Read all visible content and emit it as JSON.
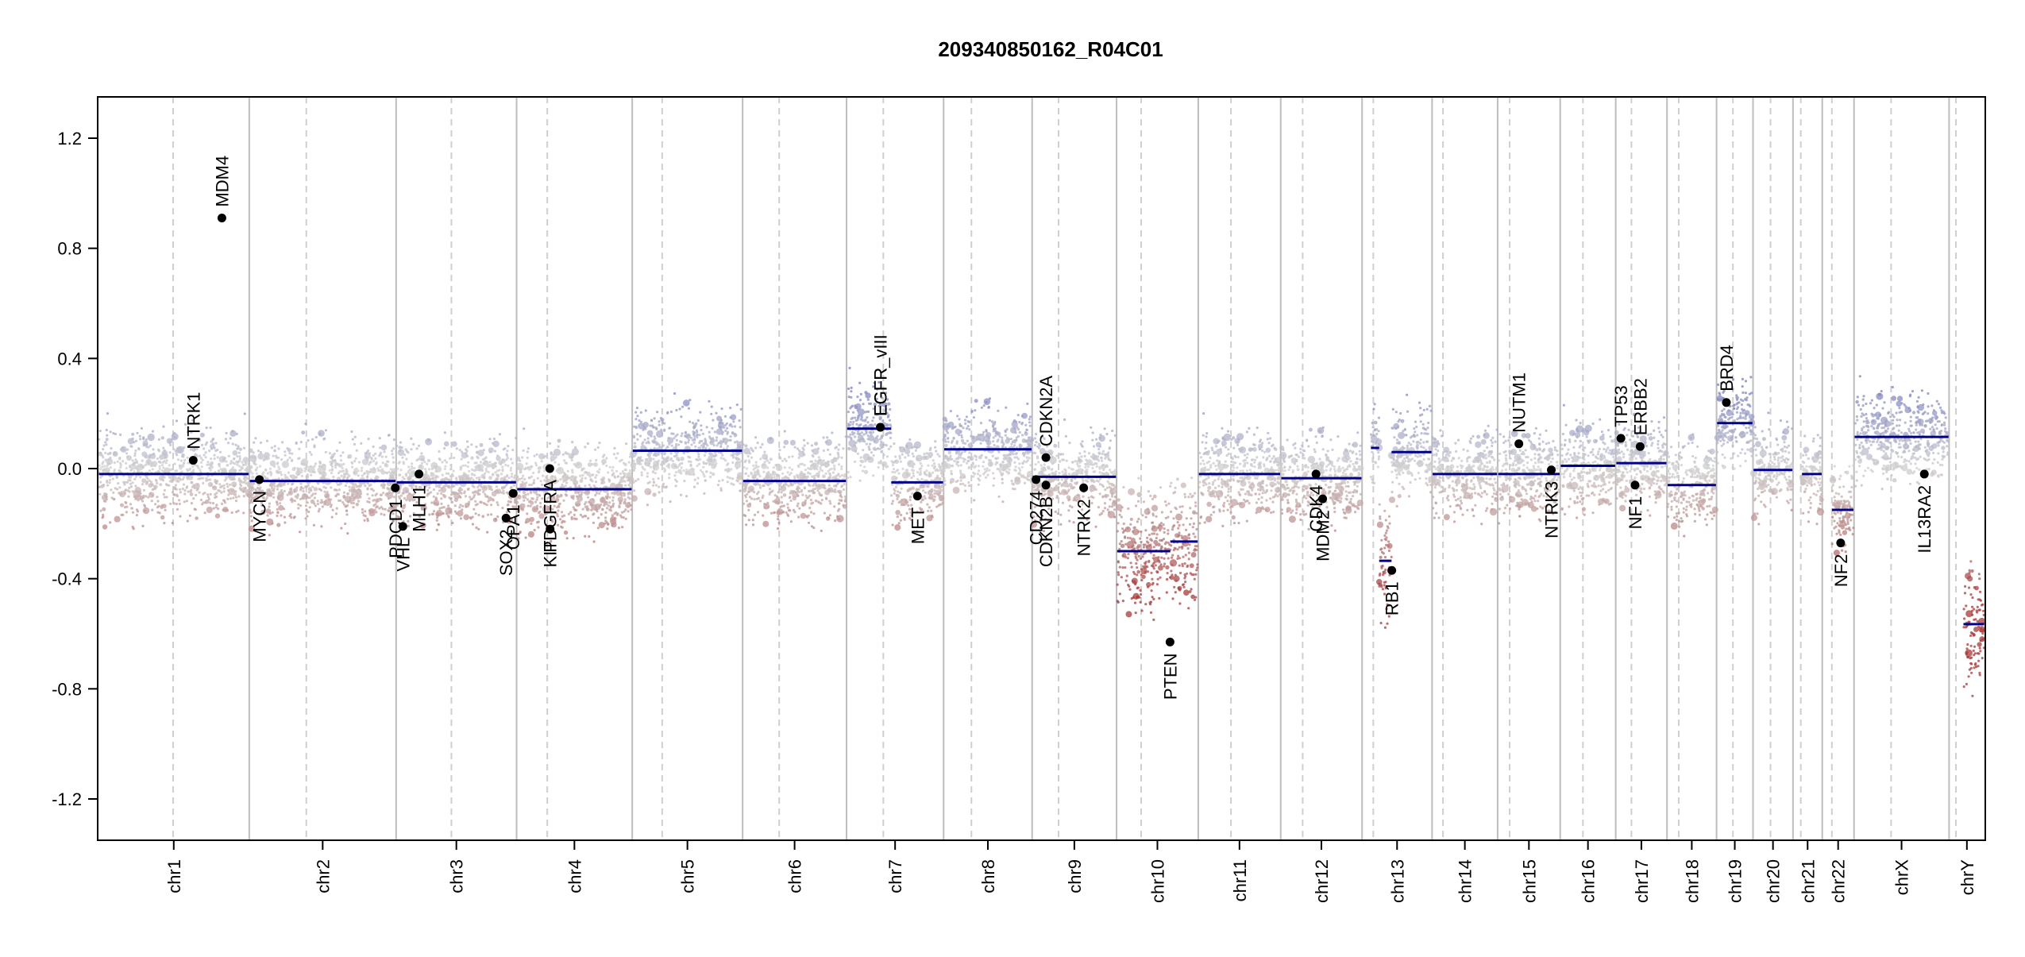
{
  "chart_data": {
    "type": "scatter",
    "title": "209340850162_R04C01",
    "xlabel": "",
    "ylabel": "",
    "ylim": [
      -1.35,
      1.35
    ],
    "y_ticks": [
      -1.2,
      -0.8,
      -0.4,
      0.0,
      0.4,
      0.8,
      1.2
    ],
    "y_tick_labels": [
      "-1.2",
      "-0.8",
      "-0.4",
      "0.0",
      "0.4",
      "0.8",
      "1.2"
    ],
    "grid": false,
    "colors": {
      "gain": "#7b7fc0",
      "neutral": "#cfcfcf",
      "loss": "#a73b3b",
      "segment": "#00008b",
      "gene_point": "#000000",
      "chrom_border": "#bdbdbd",
      "centromere": "#cfcfcf"
    },
    "chromosomes": [
      {
        "name": "chr1",
        "size": 248.956,
        "centro": 123.4,
        "segments": [
          {
            "s": 0,
            "e": 1,
            "v": -0.02
          }
        ]
      },
      {
        "name": "chr2",
        "size": 242.193,
        "centro": 93.9,
        "segments": [
          {
            "s": 0,
            "e": 1,
            "v": -0.045
          }
        ]
      },
      {
        "name": "chr3",
        "size": 198.295,
        "centro": 90.9,
        "segments": [
          {
            "s": 0,
            "e": 1,
            "v": -0.05
          }
        ]
      },
      {
        "name": "chr4",
        "size": 190.214,
        "centro": 50.0,
        "segments": [
          {
            "s": 0,
            "e": 1,
            "v": -0.075
          }
        ]
      },
      {
        "name": "chr5",
        "size": 181.538,
        "centro": 48.8,
        "segments": [
          {
            "s": 0,
            "e": 1,
            "v": 0.065
          }
        ]
      },
      {
        "name": "chr6",
        "size": 170.805,
        "centro": 59.8,
        "segments": [
          {
            "s": 0,
            "e": 1,
            "v": -0.045
          }
        ]
      },
      {
        "name": "chr7",
        "size": 159.345,
        "centro": 60.1,
        "segments": [
          {
            "s": 0,
            "e": 0.46,
            "v": 0.145
          },
          {
            "s": 0.46,
            "e": 1,
            "v": -0.05
          }
        ]
      },
      {
        "name": "chr8",
        "size": 145.138,
        "centro": 45.2,
        "segments": [
          {
            "s": 0,
            "e": 1,
            "v": 0.07
          }
        ]
      },
      {
        "name": "chr9",
        "size": 138.394,
        "centro": 43.0,
        "segments": [
          {
            "s": 0,
            "e": 1,
            "v": -0.03
          }
        ]
      },
      {
        "name": "chr10",
        "size": 133.797,
        "centro": 39.8,
        "segments": [
          {
            "s": 0,
            "e": 0.66,
            "v": -0.3
          },
          {
            "s": 0.66,
            "e": 1,
            "v": -0.265
          }
        ]
      },
      {
        "name": "chr11",
        "size": 135.086,
        "centro": 53.4,
        "segments": [
          {
            "s": 0,
            "e": 1,
            "v": -0.02
          }
        ]
      },
      {
        "name": "chr12",
        "size": 133.275,
        "centro": 35.5,
        "segments": [
          {
            "s": 0,
            "e": 1,
            "v": -0.035
          }
        ]
      },
      {
        "name": "chr13",
        "size": 114.364,
        "centro": 17.7,
        "segments": [
          {
            "s": 0.12,
            "e": 0.24,
            "v": 0.075
          },
          {
            "s": 0.24,
            "e": 0.42,
            "v": -0.335
          },
          {
            "s": 0.42,
            "e": 1,
            "v": 0.06
          }
        ]
      },
      {
        "name": "chr14",
        "size": 107.043,
        "centro": 17.2,
        "segments": [
          {
            "s": 0,
            "e": 1,
            "v": -0.02
          }
        ]
      },
      {
        "name": "chr15",
        "size": 101.991,
        "centro": 19.0,
        "segments": [
          {
            "s": 0,
            "e": 1,
            "v": -0.02
          }
        ]
      },
      {
        "name": "chr16",
        "size": 90.338,
        "centro": 36.8,
        "segments": [
          {
            "s": 0,
            "e": 1,
            "v": 0.01
          }
        ]
      },
      {
        "name": "chr17",
        "size": 83.257,
        "centro": 25.1,
        "segments": [
          {
            "s": 0,
            "e": 1,
            "v": 0.02
          }
        ]
      },
      {
        "name": "chr18",
        "size": 80.373,
        "centro": 18.5,
        "segments": [
          {
            "s": 0,
            "e": 1,
            "v": -0.06
          }
        ]
      },
      {
        "name": "chr19",
        "size": 58.617,
        "centro": 26.2,
        "segments": [
          {
            "s": 0,
            "e": 1,
            "v": 0.165
          }
        ]
      },
      {
        "name": "chr20",
        "size": 64.444,
        "centro": 28.1,
        "segments": [
          {
            "s": 0,
            "e": 1,
            "v": -0.005
          }
        ]
      },
      {
        "name": "chr21",
        "size": 46.71,
        "centro": 12.0,
        "segments": [
          {
            "s": 0.3,
            "e": 1,
            "v": -0.02
          }
        ]
      },
      {
        "name": "chr22",
        "size": 50.818,
        "centro": 15.0,
        "segments": [
          {
            "s": 0.3,
            "e": 1,
            "v": -0.15
          }
        ]
      },
      {
        "name": "chrX",
        "size": 156.041,
        "centro": 60.6,
        "segments": [
          {
            "s": 0,
            "e": 1,
            "v": 0.115
          }
        ]
      },
      {
        "name": "chrY",
        "size": 57.227,
        "centro": 10.4,
        "segments": [
          {
            "s": 0.4,
            "e": 1,
            "v": -0.565
          }
        ]
      }
    ],
    "genes": [
      {
        "name": "NTRK1",
        "chr": "chr1",
        "pos": 156.8,
        "value": 0.03
      },
      {
        "name": "MDM4",
        "chr": "chr1",
        "pos": 204.5,
        "value": 0.91
      },
      {
        "name": "MYCN",
        "chr": "chr2",
        "pos": 15.9,
        "value": -0.04
      },
      {
        "name": "PDCD1",
        "chr": "chr2",
        "pos": 241.8,
        "value": -0.07
      },
      {
        "name": "VHL",
        "chr": "chr3",
        "pos": 10.2,
        "value": -0.21
      },
      {
        "name": "MLH1",
        "chr": "chr3",
        "pos": 37.0,
        "value": -0.02
      },
      {
        "name": "SOX2",
        "chr": "chr3",
        "pos": 181.7,
        "value": -0.18
      },
      {
        "name": "OPA1",
        "chr": "chr3",
        "pos": 193.6,
        "value": -0.09
      },
      {
        "name": "PDGFRA",
        "chr": "chr4",
        "pos": 54.2,
        "value": 0.0
      },
      {
        "name": "KIT",
        "chr": "chr4",
        "pos": 54.7,
        "value": -0.22
      },
      {
        "name": "EGFR",
        "chr": "chr7",
        "pos": 55.1,
        "value": 0.15
      },
      {
        "name": "EGFR_vIII",
        "chr": "chr7",
        "pos": 55.2,
        "value": 0.15
      },
      {
        "name": "MET",
        "chr": "chr7",
        "pos": 116.8,
        "value": -0.1
      },
      {
        "name": "CD274",
        "chr": "chr9",
        "pos": 5.5,
        "value": -0.04
      },
      {
        "name": "CDKN2A",
        "chr": "chr9",
        "pos": 21.9,
        "value": 0.04
      },
      {
        "name": "CDKN2B",
        "chr": "chr9",
        "pos": 22.0,
        "value": -0.06
      },
      {
        "name": "NTRK2",
        "chr": "chr9",
        "pos": 84.7,
        "value": -0.07
      },
      {
        "name": "PTEN",
        "chr": "chr10",
        "pos": 87.9,
        "value": -0.63
      },
      {
        "name": "CDK4",
        "chr": "chr12",
        "pos": 57.7,
        "value": -0.02
      },
      {
        "name": "MDM2",
        "chr": "chr12",
        "pos": 68.8,
        "value": -0.11
      },
      {
        "name": "RB1",
        "chr": "chr13",
        "pos": 48.4,
        "value": -0.37
      },
      {
        "name": "NUTM1",
        "chr": "chr15",
        "pos": 34.3,
        "value": 0.09
      },
      {
        "name": "NTRK3",
        "chr": "chr15",
        "pos": 88.2,
        "value": -0.005
      },
      {
        "name": "TP53",
        "chr": "chr17",
        "pos": 7.6,
        "value": 0.11
      },
      {
        "name": "NF1",
        "chr": "chr17",
        "pos": 31.1,
        "value": -0.06
      },
      {
        "name": "ERBB2",
        "chr": "chr17",
        "pos": 39.7,
        "value": 0.08
      },
      {
        "name": "BRD4",
        "chr": "chr19",
        "pos": 15.3,
        "value": 0.24
      },
      {
        "name": "NF2",
        "chr": "chr22",
        "pos": 29.6,
        "value": -0.27
      },
      {
        "name": "IL13RA2",
        "chr": "chrX",
        "pos": 115.9,
        "value": -0.02
      }
    ]
  }
}
